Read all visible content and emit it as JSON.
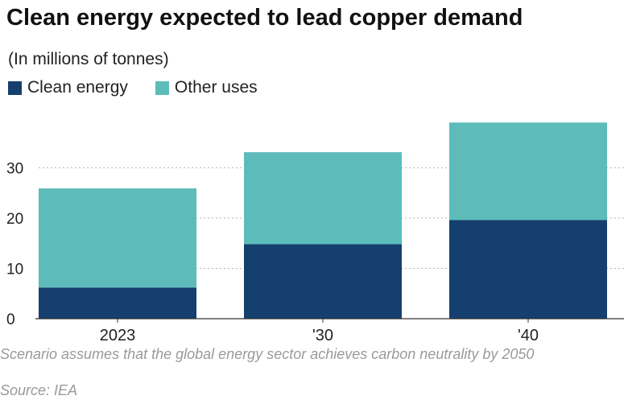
{
  "chart_data": {
    "type": "bar",
    "stacked": true,
    "title": "Clean energy expected to lead copper demand",
    "subtitle": "(In millions of tonnes)",
    "categories": [
      "2023",
      "'30",
      "'40"
    ],
    "series": [
      {
        "name": "Clean energy",
        "color": "#153f6e",
        "values": [
          6.2,
          14.8,
          19.6
        ]
      },
      {
        "name": "Other uses",
        "color": "#5dbcba",
        "values": [
          19.7,
          18.3,
          19.4
        ]
      }
    ],
    "xlabel": "",
    "ylabel": "",
    "ylim": [
      0,
      40
    ],
    "yticks": [
      0,
      10,
      20,
      30
    ],
    "grid": true,
    "legend_position": "top-left"
  },
  "footnote": "Scenario assumes that the global energy sector achieves carbon neutrality by 2050",
  "source": "Source: IEA"
}
